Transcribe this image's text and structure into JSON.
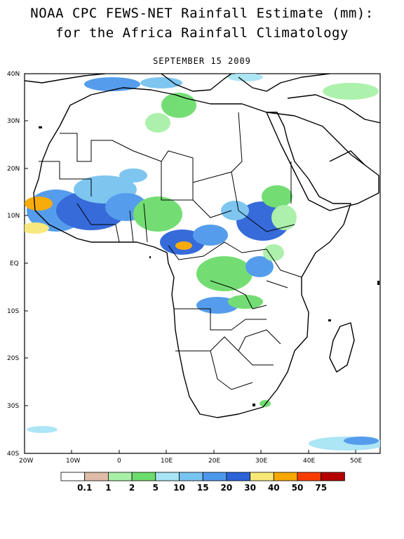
{
  "title": {
    "line1": "NOAA CPC FEWS-NET Rainfall Estimate (mm):",
    "line2": "for the Africa Rainfall Climatology"
  },
  "date": "SEPTEMBER 15 2009",
  "map": {
    "region": "Africa",
    "lat_labels": [
      "40N",
      "30N",
      "20N",
      "10N",
      "EQ",
      "10S",
      "20S",
      "30S",
      "40S"
    ],
    "lon_labels": [
      "20W",
      "10W",
      "0",
      "10E",
      "20E",
      "30E",
      "40E",
      "50E"
    ],
    "lat_range": [
      -40,
      40
    ],
    "lon_range": [
      -20,
      55
    ]
  },
  "legend": {
    "colors": [
      "#ffffff",
      "#e0bca8",
      "#a8f0a8",
      "#6cdc6c",
      "#a8e4f4",
      "#78c4f0",
      "#4c98ec",
      "#2c64d8",
      "#f8e878",
      "#f8a800",
      "#f83c00",
      "#b40000"
    ],
    "labels": [
      "0.1",
      "1",
      "2",
      "5",
      "10",
      "15",
      "20",
      "30",
      "40",
      "50",
      "75"
    ]
  }
}
